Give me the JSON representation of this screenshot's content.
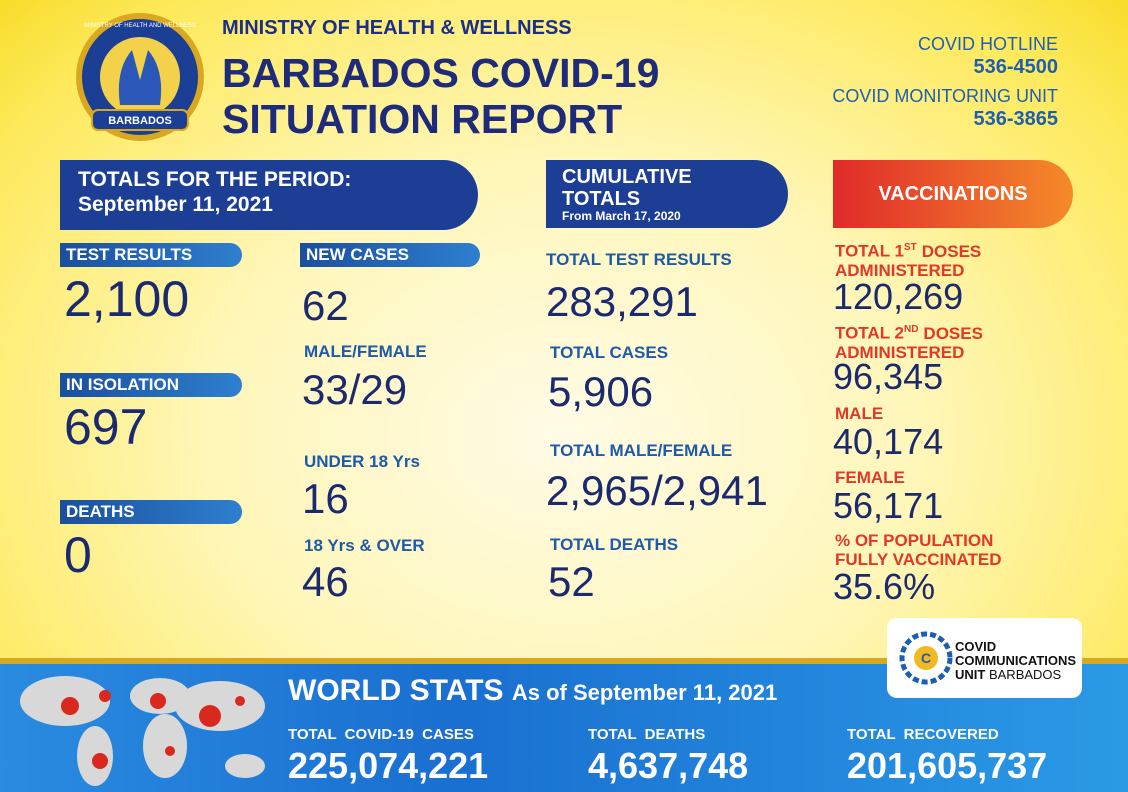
{
  "header": {
    "ministry": "MINISTRY OF HEALTH & WELLNESS",
    "title_line1": "BARBADOS COVID-19",
    "title_line2": "SITUATION REPORT",
    "logo_ring": "MINISTRY OF HEALTH AND WELLNESS",
    "logo_country": "BARBADOS"
  },
  "contacts": [
    {
      "label": "COVID HOTLINE",
      "number": "536-4500"
    },
    {
      "label": "COVID MONITORING UNIT",
      "number": "536-3865"
    }
  ],
  "period": {
    "heading": "TOTALS FOR THE PERIOD:",
    "date": "September 11, 2021",
    "left": [
      {
        "label": "TEST RESULTS",
        "value": "2,100"
      },
      {
        "label": "IN ISOLATION",
        "value": "697"
      },
      {
        "label": "DEATHS",
        "value": "0"
      }
    ],
    "new_cases": {
      "label": "NEW CASES",
      "value": "62"
    },
    "stats": [
      {
        "label": "MALE/FEMALE",
        "value": "33/29"
      },
      {
        "label": "UNDER 18 Yrs",
        "value": "16"
      },
      {
        "label": "18 Yrs & OVER",
        "value": "46"
      }
    ]
  },
  "cumulative": {
    "heading1": "CUMULATIVE",
    "heading2": "TOTALS",
    "since": "From March 17, 2020",
    "items": [
      {
        "label": "TOTAL TEST RESULTS",
        "value": "283,291"
      },
      {
        "label": "TOTAL CASES",
        "value": "5,906"
      },
      {
        "label": "TOTAL MALE/FEMALE",
        "value": "2,965/2,941"
      },
      {
        "label": "TOTAL DEATHS",
        "value": "52"
      }
    ]
  },
  "vaccinations": {
    "heading": "VACCINATIONS",
    "items": [
      {
        "label": "TOTAL 1",
        "sup": "ST",
        "label_rest": "DOSES",
        "label2": "ADMINISTERED",
        "value": "120,269"
      },
      {
        "label": "TOTAL 2",
        "sup": "ND",
        "label_rest": "DOSES",
        "label2": "ADMINISTERED",
        "value": "96,345"
      },
      {
        "label": "MALE",
        "value": "40,174"
      },
      {
        "label": "FEMALE",
        "value": "56,171"
      },
      {
        "label": "% OF POPULATION",
        "label2": "FULLY VACCINATED",
        "value": "35.6%"
      }
    ]
  },
  "ccu": {
    "line1": "COVID",
    "line2": "COMMUNICATIONS",
    "line3": "UNIT",
    "line3b": "BARBADOS"
  },
  "world": {
    "title": "WORLD STATS",
    "subtitle": "As of September 11, 2021",
    "items": [
      {
        "label": "TOTAL  COVID-19  CASES",
        "value": "225,074,221"
      },
      {
        "label": "TOTAL  DEATHS",
        "value": "4,637,748"
      },
      {
        "label": "TOTAL  RECOVERED",
        "value": "201,605,737"
      }
    ]
  }
}
